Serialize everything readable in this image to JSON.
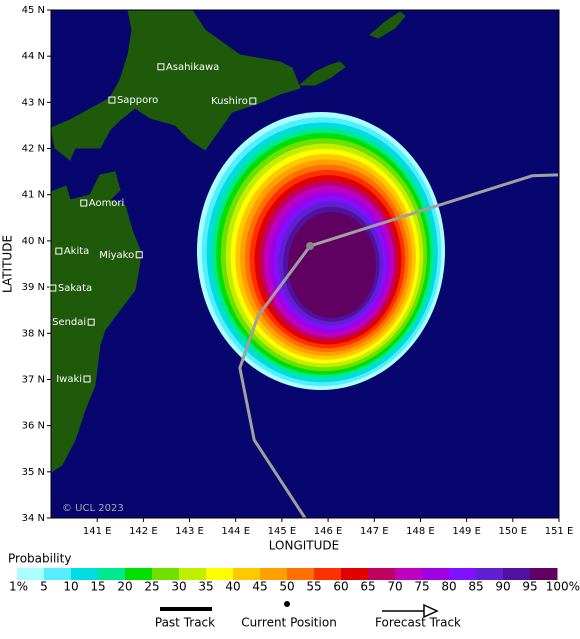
{
  "map": {
    "xlabel": "LONGITUDE",
    "ylabel": "LATITUDE",
    "xlim": [
      140,
      151
    ],
    "ylim": [
      34,
      45
    ],
    "xticks": [
      {
        "value": 141,
        "label": "141 E"
      },
      {
        "value": 142,
        "label": "142 E"
      },
      {
        "value": 143,
        "label": "143 E"
      },
      {
        "value": 144,
        "label": "144 E"
      },
      {
        "value": 145,
        "label": "145 E"
      },
      {
        "value": 146,
        "label": "146 E"
      },
      {
        "value": 147,
        "label": "147 E"
      },
      {
        "value": 148,
        "label": "148 E"
      },
      {
        "value": 149,
        "label": "149 E"
      },
      {
        "value": 150,
        "label": "150 E"
      },
      {
        "value": 151,
        "label": "151 E"
      }
    ],
    "yticks": [
      {
        "value": 34,
        "label": "34 N"
      },
      {
        "value": 35,
        "label": "35 N"
      },
      {
        "value": 36,
        "label": "36 N"
      },
      {
        "value": 37,
        "label": "37 N"
      },
      {
        "value": 38,
        "label": "38 N"
      },
      {
        "value": 39,
        "label": "39 N"
      },
      {
        "value": 40,
        "label": "40 N"
      },
      {
        "value": 41,
        "label": "41 N"
      },
      {
        "value": 42,
        "label": "42 N"
      },
      {
        "value": 43,
        "label": "43 N"
      },
      {
        "value": 44,
        "label": "44 N"
      },
      {
        "value": 45,
        "label": "45 N"
      }
    ],
    "cities": [
      {
        "name": "Asahikawa",
        "lon": 142.38,
        "lat": 43.77
      },
      {
        "name": "Sapporo",
        "lon": 141.32,
        "lat": 43.05
      },
      {
        "name": "Kushiro",
        "lon": 144.37,
        "lat": 43.03
      },
      {
        "name": "Aomori",
        "lon": 140.71,
        "lat": 40.82
      },
      {
        "name": "Akita",
        "lon": 140.17,
        "lat": 39.78
      },
      {
        "name": "Miyako",
        "lon": 141.91,
        "lat": 39.7
      },
      {
        "name": "Sakata",
        "lon": 140.04,
        "lat": 38.98
      },
      {
        "name": "Sendai",
        "lon": 140.87,
        "lat": 38.24
      },
      {
        "name": "Iwaki",
        "lon": 140.78,
        "lat": 37.01
      }
    ],
    "past_track": {
      "lon": [
        145.5,
        144.4,
        144.09,
        144.48,
        145.61
      ],
      "lat": [
        34.0,
        35.69,
        37.25,
        38.37,
        39.89
      ]
    },
    "current_position": {
      "lon": 145.61,
      "lat": 39.89
    },
    "forecast_track": {
      "lon": [
        145.61,
        148.42,
        150.42,
        150.98
      ],
      "lat": [
        39.89,
        40.78,
        41.41,
        41.43
      ]
    },
    "probability": {
      "title": "Probability",
      "levels": [
        {
          "value": 1,
          "label": "1%"
        },
        5,
        10,
        15,
        20,
        25,
        30,
        35,
        40,
        45,
        50,
        55,
        60,
        65,
        70,
        75,
        80,
        85,
        90,
        95,
        {
          "value": 100,
          "label": "100%"
        }
      ],
      "colors": [
        "#aaffff",
        "#55eeff",
        "#00dde0",
        "#00e890",
        "#00e000",
        "#70e000",
        "#c0f000",
        "#ffff00",
        "#ffc800",
        "#ffa000",
        "#ff7000",
        "#ff3000",
        "#e00000",
        "#c00060",
        "#c000c0",
        "#a000e0",
        "#8010ff",
        "#6020d0",
        "#5010a0",
        "#600060"
      ]
    },
    "legend": [
      "Past Track",
      "Current Position",
      "Forecast Track"
    ],
    "copyright": "© UCL 2023"
  }
}
